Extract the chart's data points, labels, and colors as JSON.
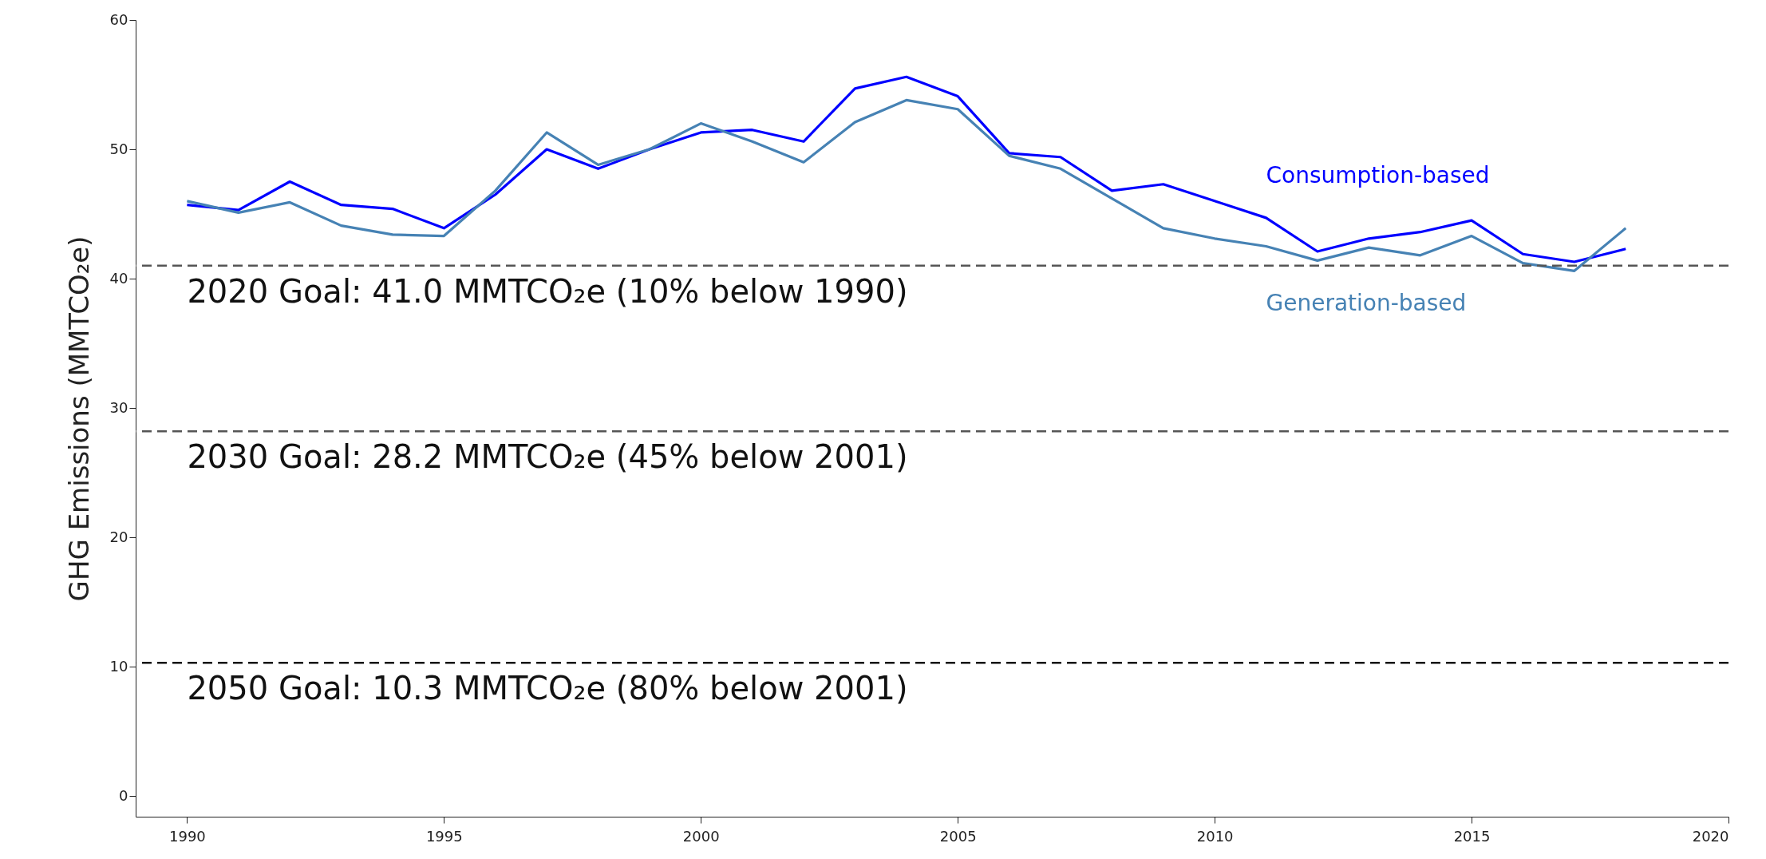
{
  "chart_data": {
    "type": "line",
    "ylabel": "GHG Emissions (MMTCO₂e)",
    "x": [
      1990,
      1991,
      1992,
      1993,
      1994,
      1995,
      1996,
      1997,
      1998,
      1999,
      2000,
      2001,
      2002,
      2003,
      2004,
      2005,
      2006,
      2007,
      2008,
      2009,
      2010,
      2011,
      2012,
      2013,
      2014,
      2015,
      2016,
      2017,
      2018
    ],
    "series": [
      {
        "name": "Consumption-based",
        "color": "#0000ff",
        "values": [
          45.7,
          45.3,
          47.5,
          45.7,
          45.4,
          43.9,
          46.5,
          50.0,
          48.5,
          50.0,
          51.3,
          51.5,
          50.6,
          54.7,
          55.6,
          54.1,
          49.7,
          49.4,
          46.8,
          47.3,
          46.0,
          44.7,
          42.1,
          43.1,
          43.6,
          44.5,
          41.9,
          41.3,
          42.3
        ]
      },
      {
        "name": "Generation-based",
        "color": "#4682b4",
        "values": [
          46.0,
          45.1,
          45.9,
          44.1,
          43.4,
          43.3,
          46.8,
          51.3,
          48.8,
          50.0,
          52.0,
          50.6,
          49.0,
          52.1,
          53.8,
          53.1,
          49.5,
          48.5,
          46.2,
          43.9,
          43.1,
          42.5,
          41.4,
          42.4,
          41.8,
          43.3,
          41.2,
          40.6,
          43.9
        ]
      }
    ],
    "xlim": [
      1989,
      2020
    ],
    "xticks": [
      1990,
      1995,
      2000,
      2005,
      2010,
      2015,
      2020
    ],
    "ylim": [
      -1.6,
      60
    ],
    "yticks": [
      0,
      10,
      20,
      30,
      40,
      50,
      60
    ],
    "grid": false,
    "legend": false,
    "ref_lines": [
      {
        "axis": "y",
        "value": 41.0,
        "label": "2020 Goal: 41.0 MMTCO₂e (10% below 1990)",
        "color": "#555555",
        "line_style": "dashed"
      },
      {
        "axis": "y",
        "value": 28.2,
        "label": "2030 Goal: 28.2 MMTCO₂e (45% below 2001)",
        "color": "#555555",
        "line_style": "dashed"
      },
      {
        "axis": "y",
        "value": 10.3,
        "label": "2050 Goal: 10.3 MMTCO₂e (80% below 2001)",
        "color": "#111111",
        "line_style": "dashed"
      }
    ]
  }
}
